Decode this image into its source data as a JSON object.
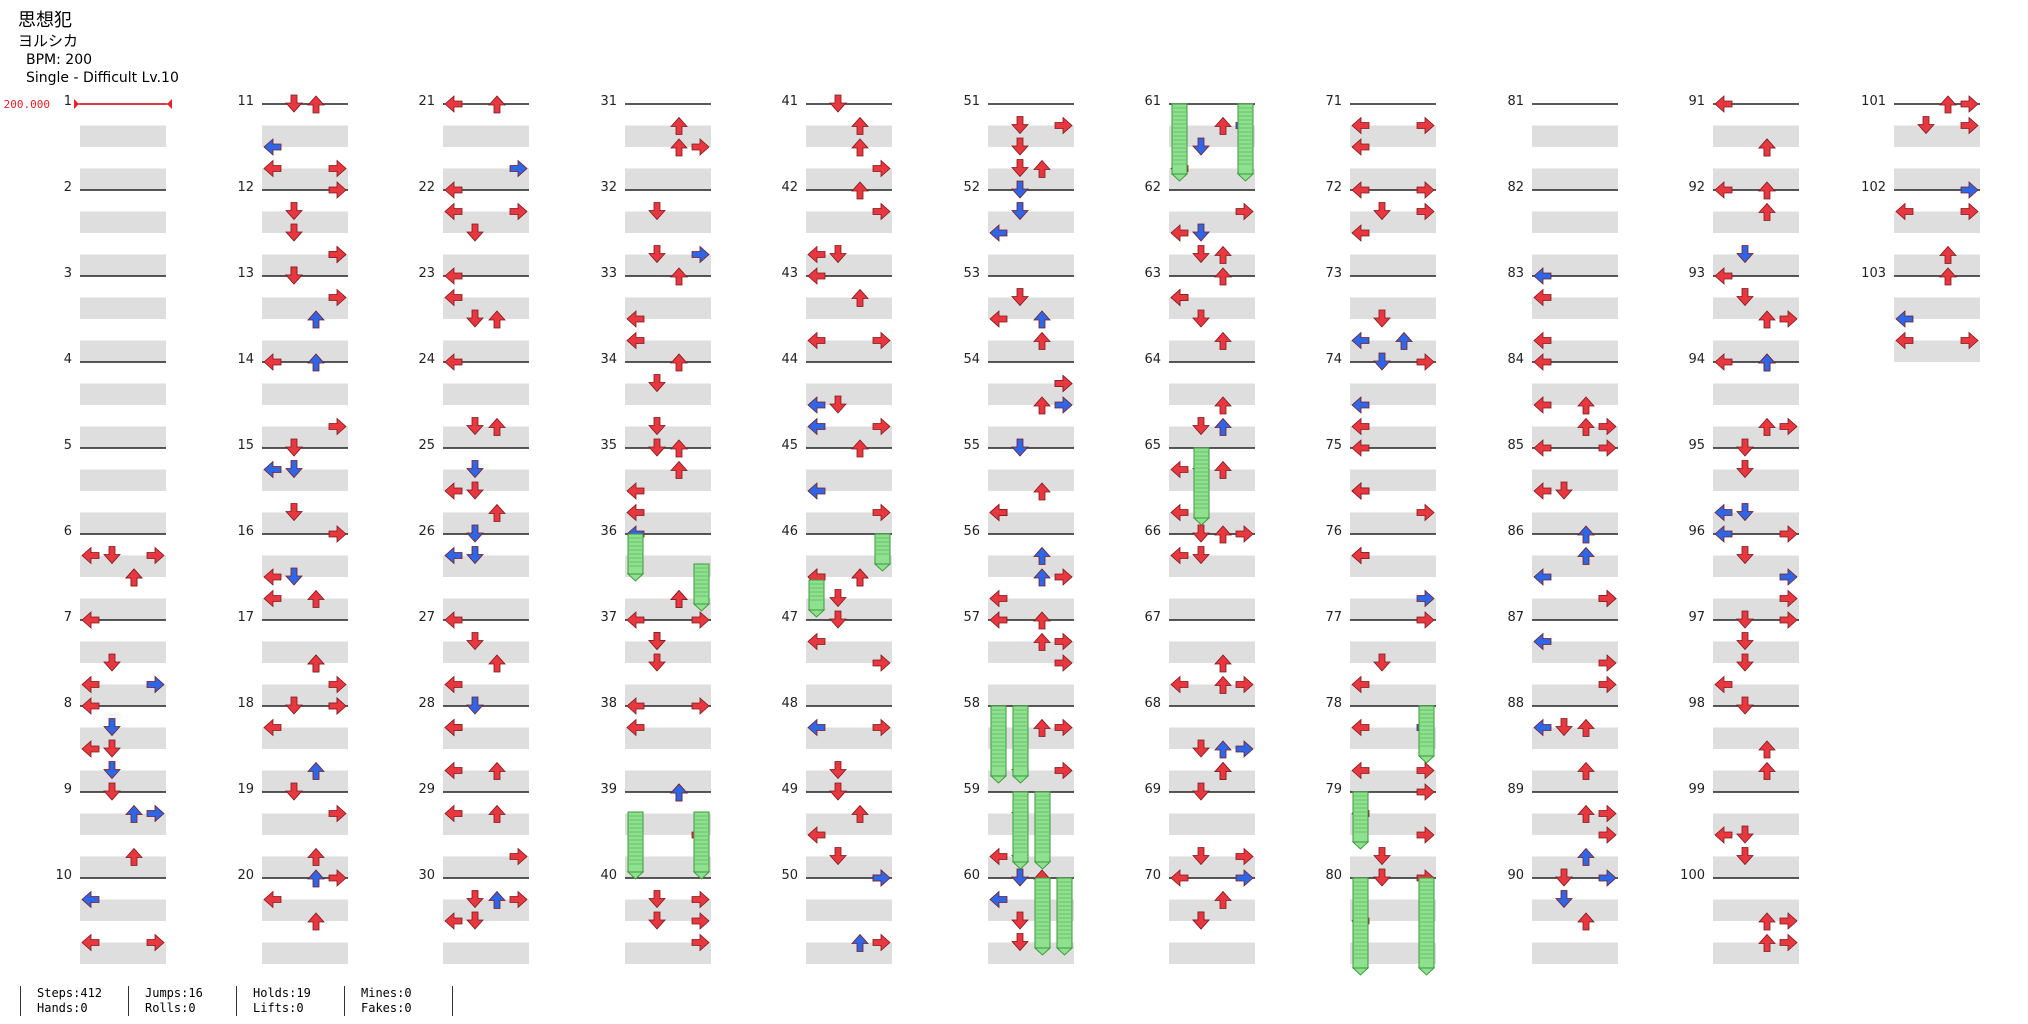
{
  "header": {
    "title": "思想犯",
    "artist": "ヨルシカ",
    "bpm": "BPM: 200",
    "difficulty": "Single - Difficult Lv.10"
  },
  "bpm_change": "200.000",
  "measure_count": 103,
  "colors": {
    "red_arrow": "#e8373f",
    "blue_arrow": "#2f66e8",
    "hold": "#8fe08f",
    "band": "#dedede",
    "bpm_line": "#e8202a"
  },
  "icons": [
    "left-arrow-icon",
    "down-arrow-icon",
    "up-arrow-icon",
    "right-arrow-icon",
    "hold-note-icon"
  ],
  "stats": [
    {
      "top": "Steps:412",
      "bottom": "Hands:0"
    },
    {
      "top": "Jumps:16",
      "bottom": "Rolls:0"
    },
    {
      "top": "Holds:19",
      "bottom": "Lifts:0"
    },
    {
      "top": "Mines:0",
      "bottom": "Fakes:0"
    }
  ]
}
